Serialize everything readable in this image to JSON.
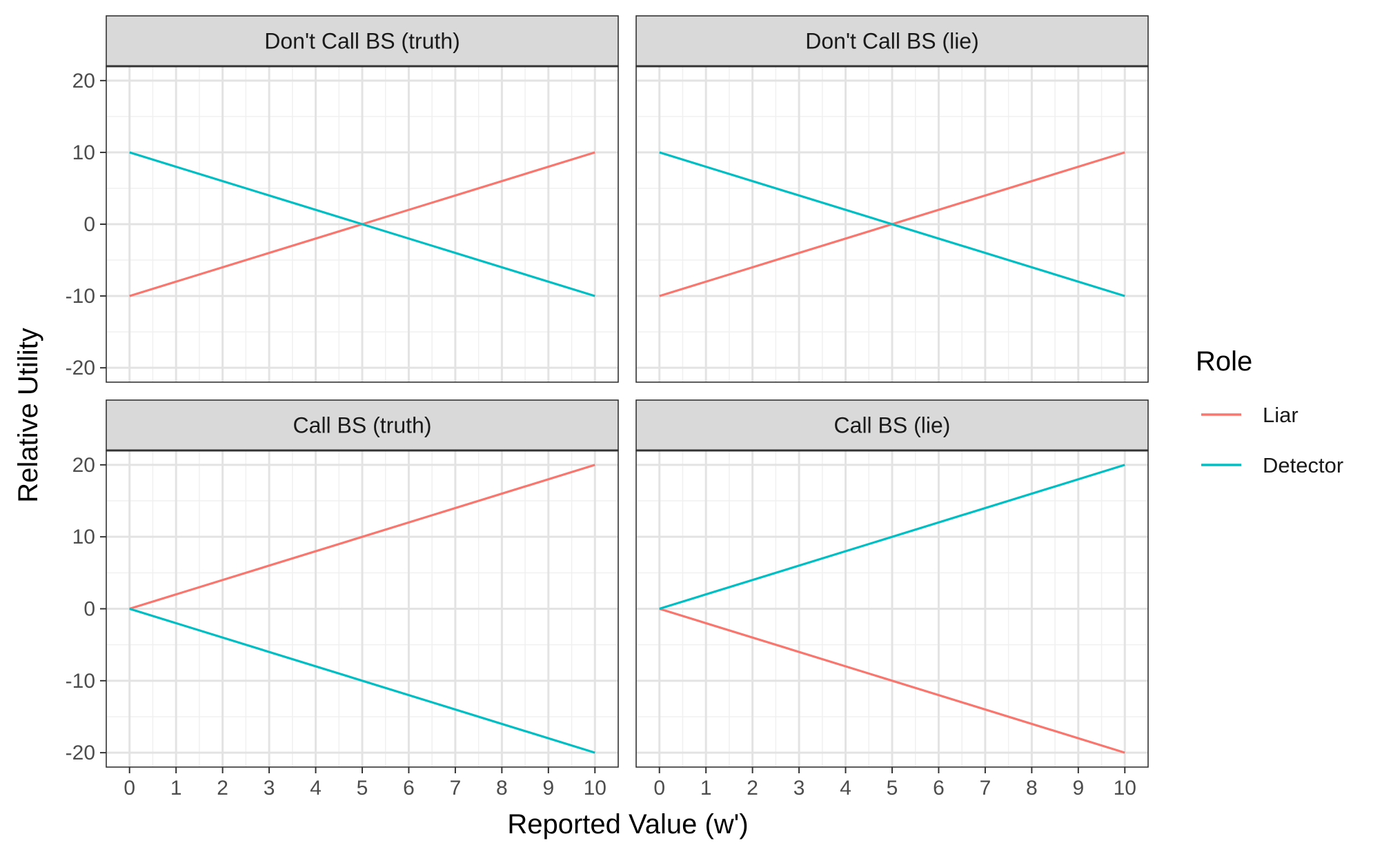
{
  "chart_data": {
    "type": "line",
    "xlabel": "Reported Value (w')",
    "ylabel": "Relative Utility",
    "xlim": [
      -0.5,
      10.5
    ],
    "ylim": [
      -22,
      22
    ],
    "x_ticks": [
      "0",
      "1",
      "2",
      "3",
      "4",
      "5",
      "6",
      "7",
      "8",
      "9",
      "10"
    ],
    "y_ticks": [
      "-20",
      "-10",
      "0",
      "10",
      "20"
    ],
    "grid": true,
    "legend": {
      "title": "Role",
      "placement": "right",
      "entries": [
        {
          "name": "Liar",
          "color": "#F8766D"
        },
        {
          "name": "Detector",
          "color": "#00BFC4"
        }
      ]
    },
    "panels": [
      {
        "title": "Don't Call BS (truth)",
        "series": [
          {
            "name": "Liar",
            "color": "#F8766D",
            "x": [
              0,
              10
            ],
            "y": [
              -10,
              10
            ]
          },
          {
            "name": "Detector",
            "color": "#00BFC4",
            "x": [
              0,
              10
            ],
            "y": [
              10,
              -10
            ]
          }
        ]
      },
      {
        "title": "Don't Call BS (lie)",
        "series": [
          {
            "name": "Liar",
            "color": "#F8766D",
            "x": [
              0,
              10
            ],
            "y": [
              -10,
              10
            ]
          },
          {
            "name": "Detector",
            "color": "#00BFC4",
            "x": [
              0,
              10
            ],
            "y": [
              10,
              -10
            ]
          }
        ]
      },
      {
        "title": "Call BS (truth)",
        "series": [
          {
            "name": "Liar",
            "color": "#F8766D",
            "x": [
              0,
              10
            ],
            "y": [
              0,
              20
            ]
          },
          {
            "name": "Detector",
            "color": "#00BFC4",
            "x": [
              0,
              10
            ],
            "y": [
              0,
              -20
            ]
          }
        ]
      },
      {
        "title": "Call BS (lie)",
        "series": [
          {
            "name": "Liar",
            "color": "#F8766D",
            "x": [
              0,
              10
            ],
            "y": [
              0,
              -20
            ]
          },
          {
            "name": "Detector",
            "color": "#00BFC4",
            "x": [
              0,
              10
            ],
            "y": [
              0,
              20
            ]
          }
        ]
      }
    ]
  }
}
